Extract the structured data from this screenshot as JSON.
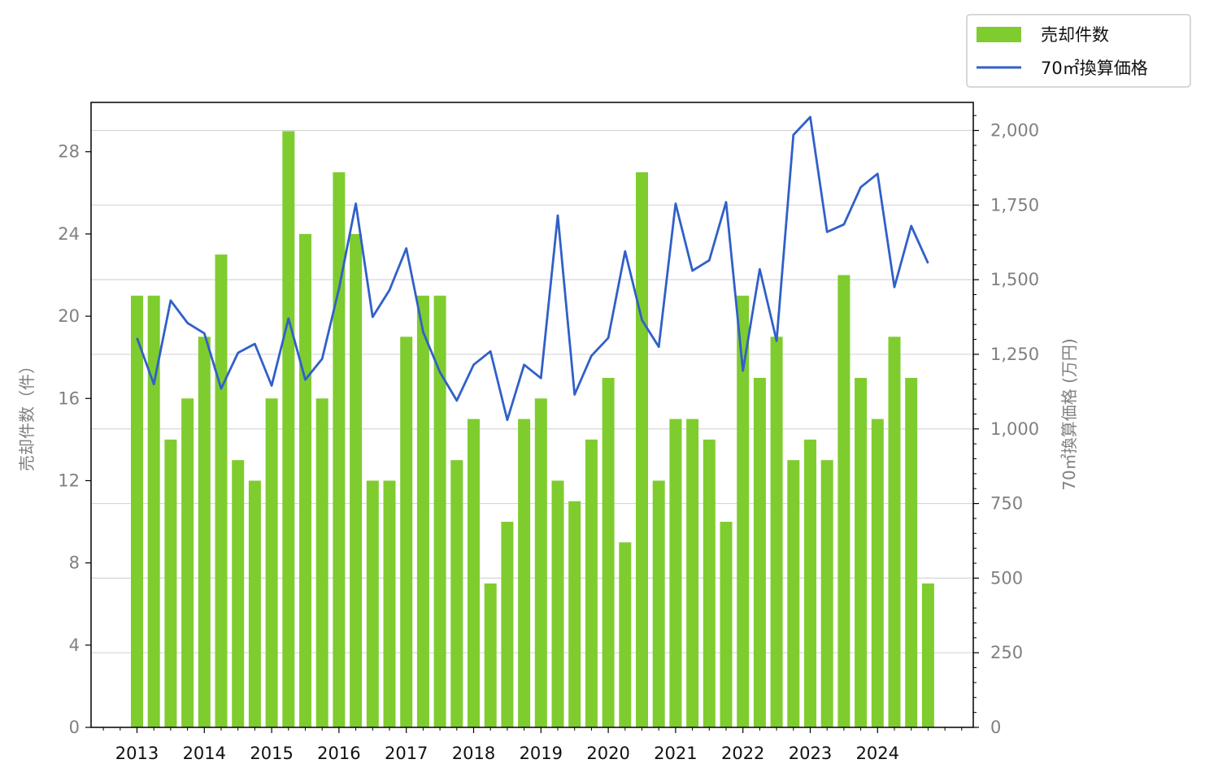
{
  "chart_data": {
    "type": "bar",
    "xlabel": "",
    "ylabel": "売却件数（件）",
    "y2label": "70㎡換算価格 (万円)",
    "ylim": [
      0,
      30.4
    ],
    "y2lim": [
      0,
      2094
    ],
    "y_ticks": [
      0,
      4,
      8,
      12,
      16,
      20,
      24,
      28
    ],
    "y_tick_labels": [
      "0",
      "4",
      "8",
      "12",
      "16",
      "20",
      "24",
      "28"
    ],
    "y2_ticks": [
      0,
      250,
      500,
      750,
      1000,
      1250,
      1500,
      1750,
      2000
    ],
    "y2_tick_labels": [
      "0",
      "250",
      "500",
      "750",
      "1,000",
      "1,250",
      "1,500",
      "1,750",
      "2,000"
    ],
    "x_start": 2013,
    "x_tick_labels": [
      "2013",
      "2014",
      "2015",
      "2016",
      "2017",
      "2018",
      "2019",
      "2020",
      "2021",
      "2022",
      "2023",
      "2024"
    ],
    "grid": "horizontal (right axis)",
    "legend_position": "top-right outside",
    "series": [
      {
        "name": "売却件数",
        "type": "bar",
        "axis": "left",
        "color": "#7fcc2f",
        "values": [
          21,
          21,
          14,
          16,
          19,
          23,
          13,
          12,
          16,
          29,
          24,
          16,
          27,
          24,
          12,
          12,
          19,
          21,
          21,
          13,
          15,
          7,
          10,
          15,
          16,
          12,
          11,
          14,
          17,
          9,
          27,
          12,
          15,
          15,
          14,
          10,
          21,
          17,
          19,
          13,
          14,
          13,
          22,
          17,
          15,
          19,
          17,
          7
        ]
      },
      {
        "name": "70㎡換算価格",
        "type": "line",
        "axis": "right",
        "color": "#3060c8",
        "values": [
          1305,
          1150,
          1430,
          1355,
          1320,
          1135,
          1255,
          1285,
          1145,
          1370,
          1165,
          1235,
          1470,
          1755,
          1375,
          1465,
          1605,
          1325,
          1190,
          1095,
          1215,
          1260,
          1030,
          1215,
          1170,
          1715,
          1115,
          1245,
          1305,
          1595,
          1365,
          1275,
          1755,
          1530,
          1565,
          1760,
          1195,
          1535,
          1295,
          1985,
          2045,
          1660,
          1685,
          1810,
          1855,
          1475,
          1680,
          1555
        ]
      }
    ]
  }
}
